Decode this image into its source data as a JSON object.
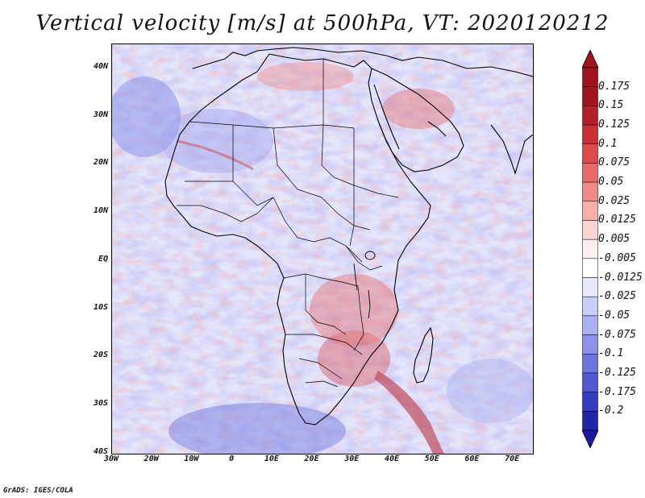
{
  "title": "Vertical velocity [m/s] at 500hPa, VT: 2020120212",
  "credit": "GrADS: IGES/COLA",
  "map": {
    "type": "filled-contour-map",
    "region": "Africa",
    "lon_range": [
      -30,
      75
    ],
    "lat_range": [
      -40,
      45
    ]
  },
  "lat_ticks": [
    {
      "label": "40N",
      "value": 40
    },
    {
      "label": "30N",
      "value": 30
    },
    {
      "label": "20N",
      "value": 20
    },
    {
      "label": "10N",
      "value": 10
    },
    {
      "label": "EQ",
      "value": 0
    },
    {
      "label": "10S",
      "value": -10
    },
    {
      "label": "20S",
      "value": -20
    },
    {
      "label": "30S",
      "value": -30
    },
    {
      "label": "40S",
      "value": -40
    }
  ],
  "lon_ticks": [
    {
      "label": "30W",
      "value": -30
    },
    {
      "label": "20W",
      "value": -20
    },
    {
      "label": "10W",
      "value": -10
    },
    {
      "label": "0",
      "value": 0
    },
    {
      "label": "10E",
      "value": 10
    },
    {
      "label": "20E",
      "value": 20
    },
    {
      "label": "30E",
      "value": 30
    },
    {
      "label": "40E",
      "value": 40
    },
    {
      "label": "50E",
      "value": 50
    },
    {
      "label": "60E",
      "value": 60
    },
    {
      "label": "70E",
      "value": 70
    }
  ],
  "colorbar": {
    "levels": [
      {
        "label": "0.175",
        "color": "#a0141e"
      },
      {
        "label": "0.15",
        "color": "#b42028"
      },
      {
        "label": "0.125",
        "color": "#c83036"
      },
      {
        "label": "0.1",
        "color": "#dc4a4c"
      },
      {
        "label": "0.075",
        "color": "#e86a68"
      },
      {
        "label": "0.05",
        "color": "#f08c88"
      },
      {
        "label": "0.025",
        "color": "#f6b0ac"
      },
      {
        "label": "0.0125",
        "color": "#fad4d0"
      },
      {
        "label": "0.005",
        "color": "#fdeeec"
      },
      {
        "label": "-0.005",
        "color": "#ffffff"
      },
      {
        "label": "-0.0125",
        "color": "#e6e8fb"
      },
      {
        "label": "-0.025",
        "color": "#c8ccf6"
      },
      {
        "label": "-0.05",
        "color": "#aab0f0"
      },
      {
        "label": "-0.075",
        "color": "#8c92e8"
      },
      {
        "label": "-0.1",
        "color": "#6e74de"
      },
      {
        "label": "-0.125",
        "color": "#5258d0"
      },
      {
        "label": "-0.175",
        "color": "#363cbe"
      },
      {
        "label": "-0.2",
        "color": "#2024a8"
      }
    ],
    "top_color": "#a0141e",
    "bottom_color": "#1a1a9a"
  }
}
